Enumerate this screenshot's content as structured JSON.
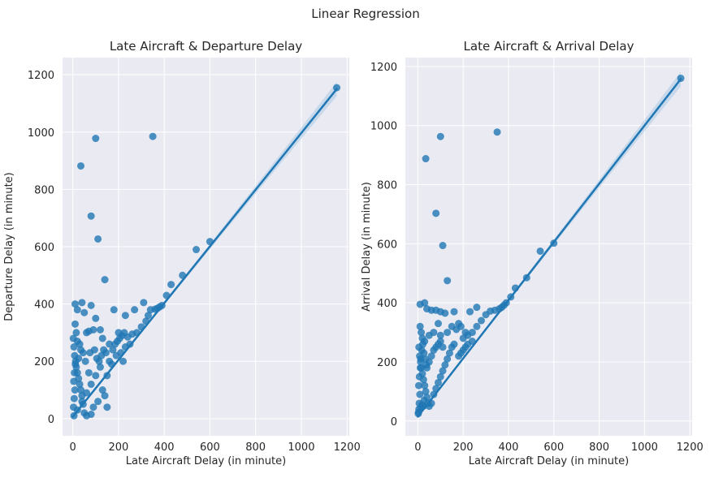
{
  "figure": {
    "suptitle": "Linear Regression"
  },
  "colors": {
    "panel_bg": "#eaeaf2",
    "grid": "#ffffff",
    "point": "#1f77b4",
    "line": "#1f77b4",
    "ci_band": "#a9c8e6"
  },
  "chart_data": [
    {
      "type": "scatter",
      "title": "Late Aircraft & Departure Delay",
      "xlabel": "Late Aircraft Delay (in minute)",
      "ylabel": "Departure Delay (in minute)",
      "xlim": [
        -45,
        1210
      ],
      "ylim": [
        -60,
        1260
      ],
      "xticks": [
        0,
        200,
        400,
        600,
        800,
        1000,
        1200
      ],
      "yticks": [
        0,
        200,
        400,
        600,
        800,
        1000,
        1200
      ],
      "grid": true,
      "regression": {
        "intercept": 7,
        "slope": 0.99
      },
      "points": [
        [
          1155,
          1155
        ],
        [
          350,
          985
        ],
        [
          100,
          978
        ],
        [
          35,
          882
        ],
        [
          80,
          707
        ],
        [
          110,
          627
        ],
        [
          140,
          485
        ],
        [
          540,
          590
        ],
        [
          600,
          618
        ],
        [
          480,
          500
        ],
        [
          430,
          468
        ],
        [
          410,
          430
        ],
        [
          390,
          395
        ],
        [
          380,
          390
        ],
        [
          370,
          385
        ],
        [
          360,
          382
        ],
        [
          340,
          380
        ],
        [
          330,
          360
        ],
        [
          310,
          405
        ],
        [
          320,
          340
        ],
        [
          300,
          320
        ],
        [
          280,
          300
        ],
        [
          260,
          295
        ],
        [
          240,
          285
        ],
        [
          200,
          300
        ],
        [
          180,
          380
        ],
        [
          270,
          380
        ],
        [
          230,
          360
        ],
        [
          150,
          40
        ],
        [
          140,
          80
        ],
        [
          10,
          400
        ],
        [
          20,
          380
        ],
        [
          40,
          405
        ],
        [
          50,
          370
        ],
        [
          80,
          395
        ],
        [
          100,
          350
        ],
        [
          10,
          330
        ],
        [
          15,
          300
        ],
        [
          20,
          270
        ],
        [
          30,
          260
        ],
        [
          60,
          300
        ],
        [
          70,
          305
        ],
        [
          90,
          310
        ],
        [
          120,
          310
        ],
        [
          130,
          280
        ],
        [
          160,
          260
        ],
        [
          150,
          150
        ],
        [
          170,
          190
        ],
        [
          190,
          220
        ],
        [
          210,
          230
        ],
        [
          220,
          200
        ],
        [
          230,
          250
        ],
        [
          250,
          260
        ],
        [
          120,
          180
        ],
        [
          100,
          150
        ],
        [
          80,
          120
        ],
        [
          60,
          90
        ],
        [
          40,
          60
        ],
        [
          20,
          30
        ],
        [
          5,
          10
        ],
        [
          2,
          280
        ],
        [
          5,
          250
        ],
        [
          8,
          220
        ],
        [
          12,
          200
        ],
        [
          15,
          180
        ],
        [
          20,
          160
        ],
        [
          25,
          140
        ],
        [
          30,
          120
        ],
        [
          35,
          100
        ],
        [
          40,
          80
        ],
        [
          45,
          50
        ],
        [
          50,
          20
        ],
        [
          60,
          10
        ],
        [
          80,
          15
        ],
        [
          90,
          40
        ],
        [
          110,
          60
        ],
        [
          130,
          100
        ],
        [
          70,
          160
        ],
        [
          55,
          200
        ],
        [
          45,
          230
        ],
        [
          35,
          240
        ],
        [
          25,
          210
        ],
        [
          75,
          230
        ],
        [
          95,
          240
        ],
        [
          105,
          210
        ],
        [
          115,
          200
        ],
        [
          125,
          220
        ],
        [
          135,
          240
        ],
        [
          145,
          230
        ],
        [
          160,
          200
        ],
        [
          175,
          240
        ],
        [
          185,
          260
        ],
        [
          195,
          270
        ],
        [
          205,
          280
        ],
        [
          215,
          290
        ],
        [
          225,
          300
        ],
        [
          3,
          40
        ],
        [
          6,
          70
        ],
        [
          9,
          100
        ],
        [
          4,
          130
        ],
        [
          7,
          160
        ],
        [
          11,
          190
        ]
      ]
    },
    {
      "type": "scatter",
      "title": "Late Aircraft & Arrival Delay",
      "xlabel": "Late Aircraft Delay (in minute)",
      "ylabel": "Arrival Delay (in minute)",
      "xlim": [
        -55,
        1210
      ],
      "ylim": [
        -50,
        1230
      ],
      "xticks": [
        0,
        200,
        400,
        600,
        800,
        1000,
        1200
      ],
      "yticks": [
        0,
        200,
        400,
        600,
        800,
        1000,
        1200
      ],
      "grid": true,
      "regression": {
        "intercept": 15,
        "slope": 0.985
      },
      "points": [
        [
          1160,
          1160
        ],
        [
          350,
          978
        ],
        [
          100,
          963
        ],
        [
          35,
          888
        ],
        [
          80,
          703
        ],
        [
          110,
          594
        ],
        [
          130,
          475
        ],
        [
          540,
          575
        ],
        [
          600,
          602
        ],
        [
          480,
          485
        ],
        [
          430,
          450
        ],
        [
          410,
          420
        ],
        [
          390,
          400
        ],
        [
          380,
          392
        ],
        [
          370,
          385
        ],
        [
          360,
          380
        ],
        [
          340,
          375
        ],
        [
          320,
          372
        ],
        [
          300,
          360
        ],
        [
          280,
          340
        ],
        [
          260,
          320
        ],
        [
          240,
          300
        ],
        [
          220,
          290
        ],
        [
          200,
          280
        ],
        [
          180,
          330
        ],
        [
          160,
          370
        ],
        [
          260,
          385
        ],
        [
          230,
          370
        ],
        [
          10,
          395
        ],
        [
          30,
          400
        ],
        [
          40,
          380
        ],
        [
          60,
          375
        ],
        [
          80,
          375
        ],
        [
          100,
          370
        ],
        [
          120,
          365
        ],
        [
          90,
          330
        ],
        [
          10,
          320
        ],
        [
          15,
          300
        ],
        [
          20,
          280
        ],
        [
          30,
          270
        ],
        [
          50,
          290
        ],
        [
          70,
          300
        ],
        [
          100,
          290
        ],
        [
          130,
          300
        ],
        [
          150,
          320
        ],
        [
          170,
          310
        ],
        [
          190,
          320
        ],
        [
          210,
          300
        ],
        [
          5,
          250
        ],
        [
          8,
          220
        ],
        [
          12,
          200
        ],
        [
          15,
          180
        ],
        [
          20,
          160
        ],
        [
          25,
          140
        ],
        [
          30,
          120
        ],
        [
          35,
          100
        ],
        [
          40,
          80
        ],
        [
          45,
          60
        ],
        [
          50,
          50
        ],
        [
          60,
          60
        ],
        [
          70,
          90
        ],
        [
          80,
          110
        ],
        [
          90,
          130
        ],
        [
          100,
          150
        ],
        [
          110,
          170
        ],
        [
          120,
          190
        ],
        [
          130,
          210
        ],
        [
          140,
          230
        ],
        [
          150,
          250
        ],
        [
          160,
          260
        ],
        [
          60,
          220
        ],
        [
          70,
          240
        ],
        [
          80,
          250
        ],
        [
          90,
          260
        ],
        [
          100,
          270
        ],
        [
          110,
          250
        ],
        [
          50,
          200
        ],
        [
          40,
          180
        ],
        [
          3,
          30
        ],
        [
          6,
          60
        ],
        [
          9,
          90
        ],
        [
          4,
          120
        ],
        [
          7,
          150
        ],
        [
          11,
          180
        ],
        [
          13,
          210
        ],
        [
          17,
          240
        ],
        [
          22,
          260
        ],
        [
          27,
          230
        ],
        [
          33,
          210
        ],
        [
          38,
          190
        ],
        [
          180,
          220
        ],
        [
          200,
          240
        ],
        [
          220,
          260
        ],
        [
          240,
          270
        ],
        [
          190,
          230
        ],
        [
          210,
          250
        ],
        [
          2,
          25
        ],
        [
          5,
          40
        ],
        [
          14,
          45
        ],
        [
          18,
          55
        ],
        [
          24,
          50
        ],
        [
          28,
          70
        ]
      ]
    }
  ]
}
